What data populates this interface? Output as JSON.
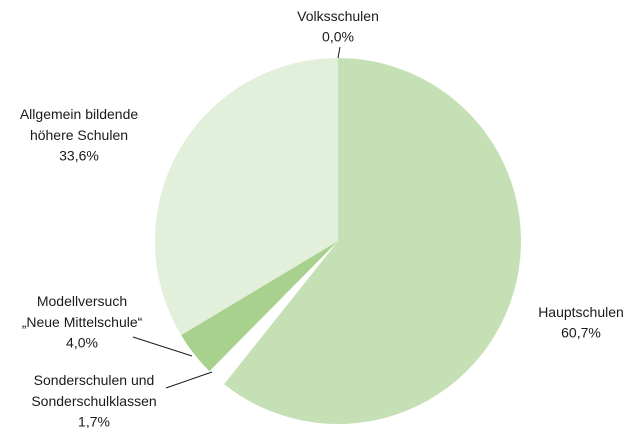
{
  "chart_data": {
    "type": "pie",
    "categories": [
      "Volksschulen",
      "Hauptschulen",
      "Sonderschulen und\nSonderschulklassen",
      "Modellversuch\n„Neue Mittelschule“",
      "Allgemein bildende\nhöhere Schulen"
    ],
    "values": [
      0.0,
      60.7,
      1.7,
      4.0,
      33.6
    ],
    "value_labels": [
      "0,0%",
      "60,7%",
      "1,7%",
      "4,0%",
      "33,6%"
    ],
    "colors": [
      "#c5e0b4",
      "#c5e0b4",
      "#ffffff",
      "#a9d18e",
      "#e2efda"
    ]
  }
}
